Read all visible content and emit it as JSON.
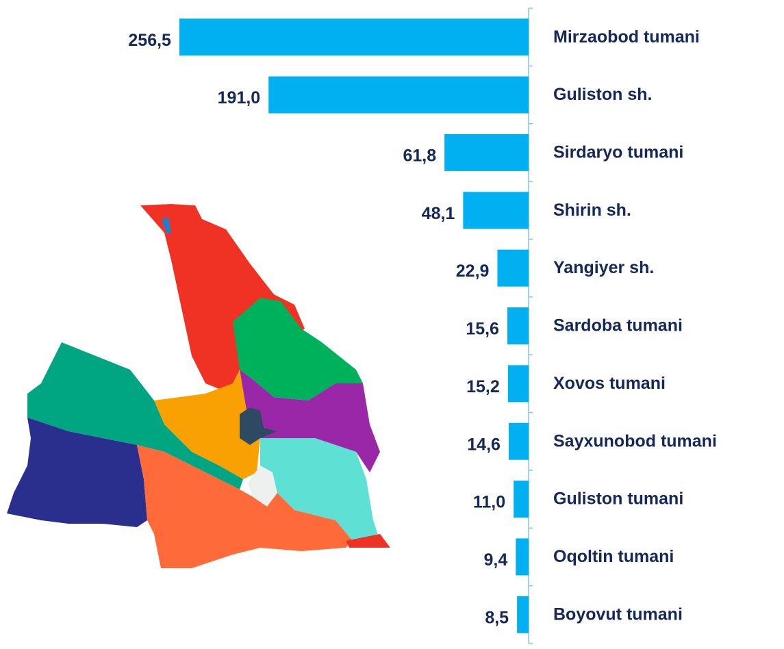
{
  "chart_data": {
    "type": "barh",
    "categories": [
      "Mirzaobod tumani",
      "Guliston sh.",
      "Sirdaryo tumani",
      "Shirin sh.",
      "Yangiyer sh.",
      "Sardoba tumani",
      "Xovos tumani",
      "Sayxunobod tumani",
      "Guliston tumani",
      "Oqoltin tumani",
      "Boyovut tumani"
    ],
    "values": [
      256.5,
      191.0,
      61.8,
      48.1,
      22.9,
      15.6,
      15.2,
      14.6,
      11.0,
      9.4,
      8.5
    ],
    "value_labels": [
      "256,5",
      "191,0",
      "61,8",
      "48,1",
      "22,9",
      "15,6",
      "15,2",
      "14,6",
      "11,0",
      "9,4",
      "8,5"
    ],
    "color": "#00b0f0",
    "xlim": [
      0,
      260
    ]
  }
}
